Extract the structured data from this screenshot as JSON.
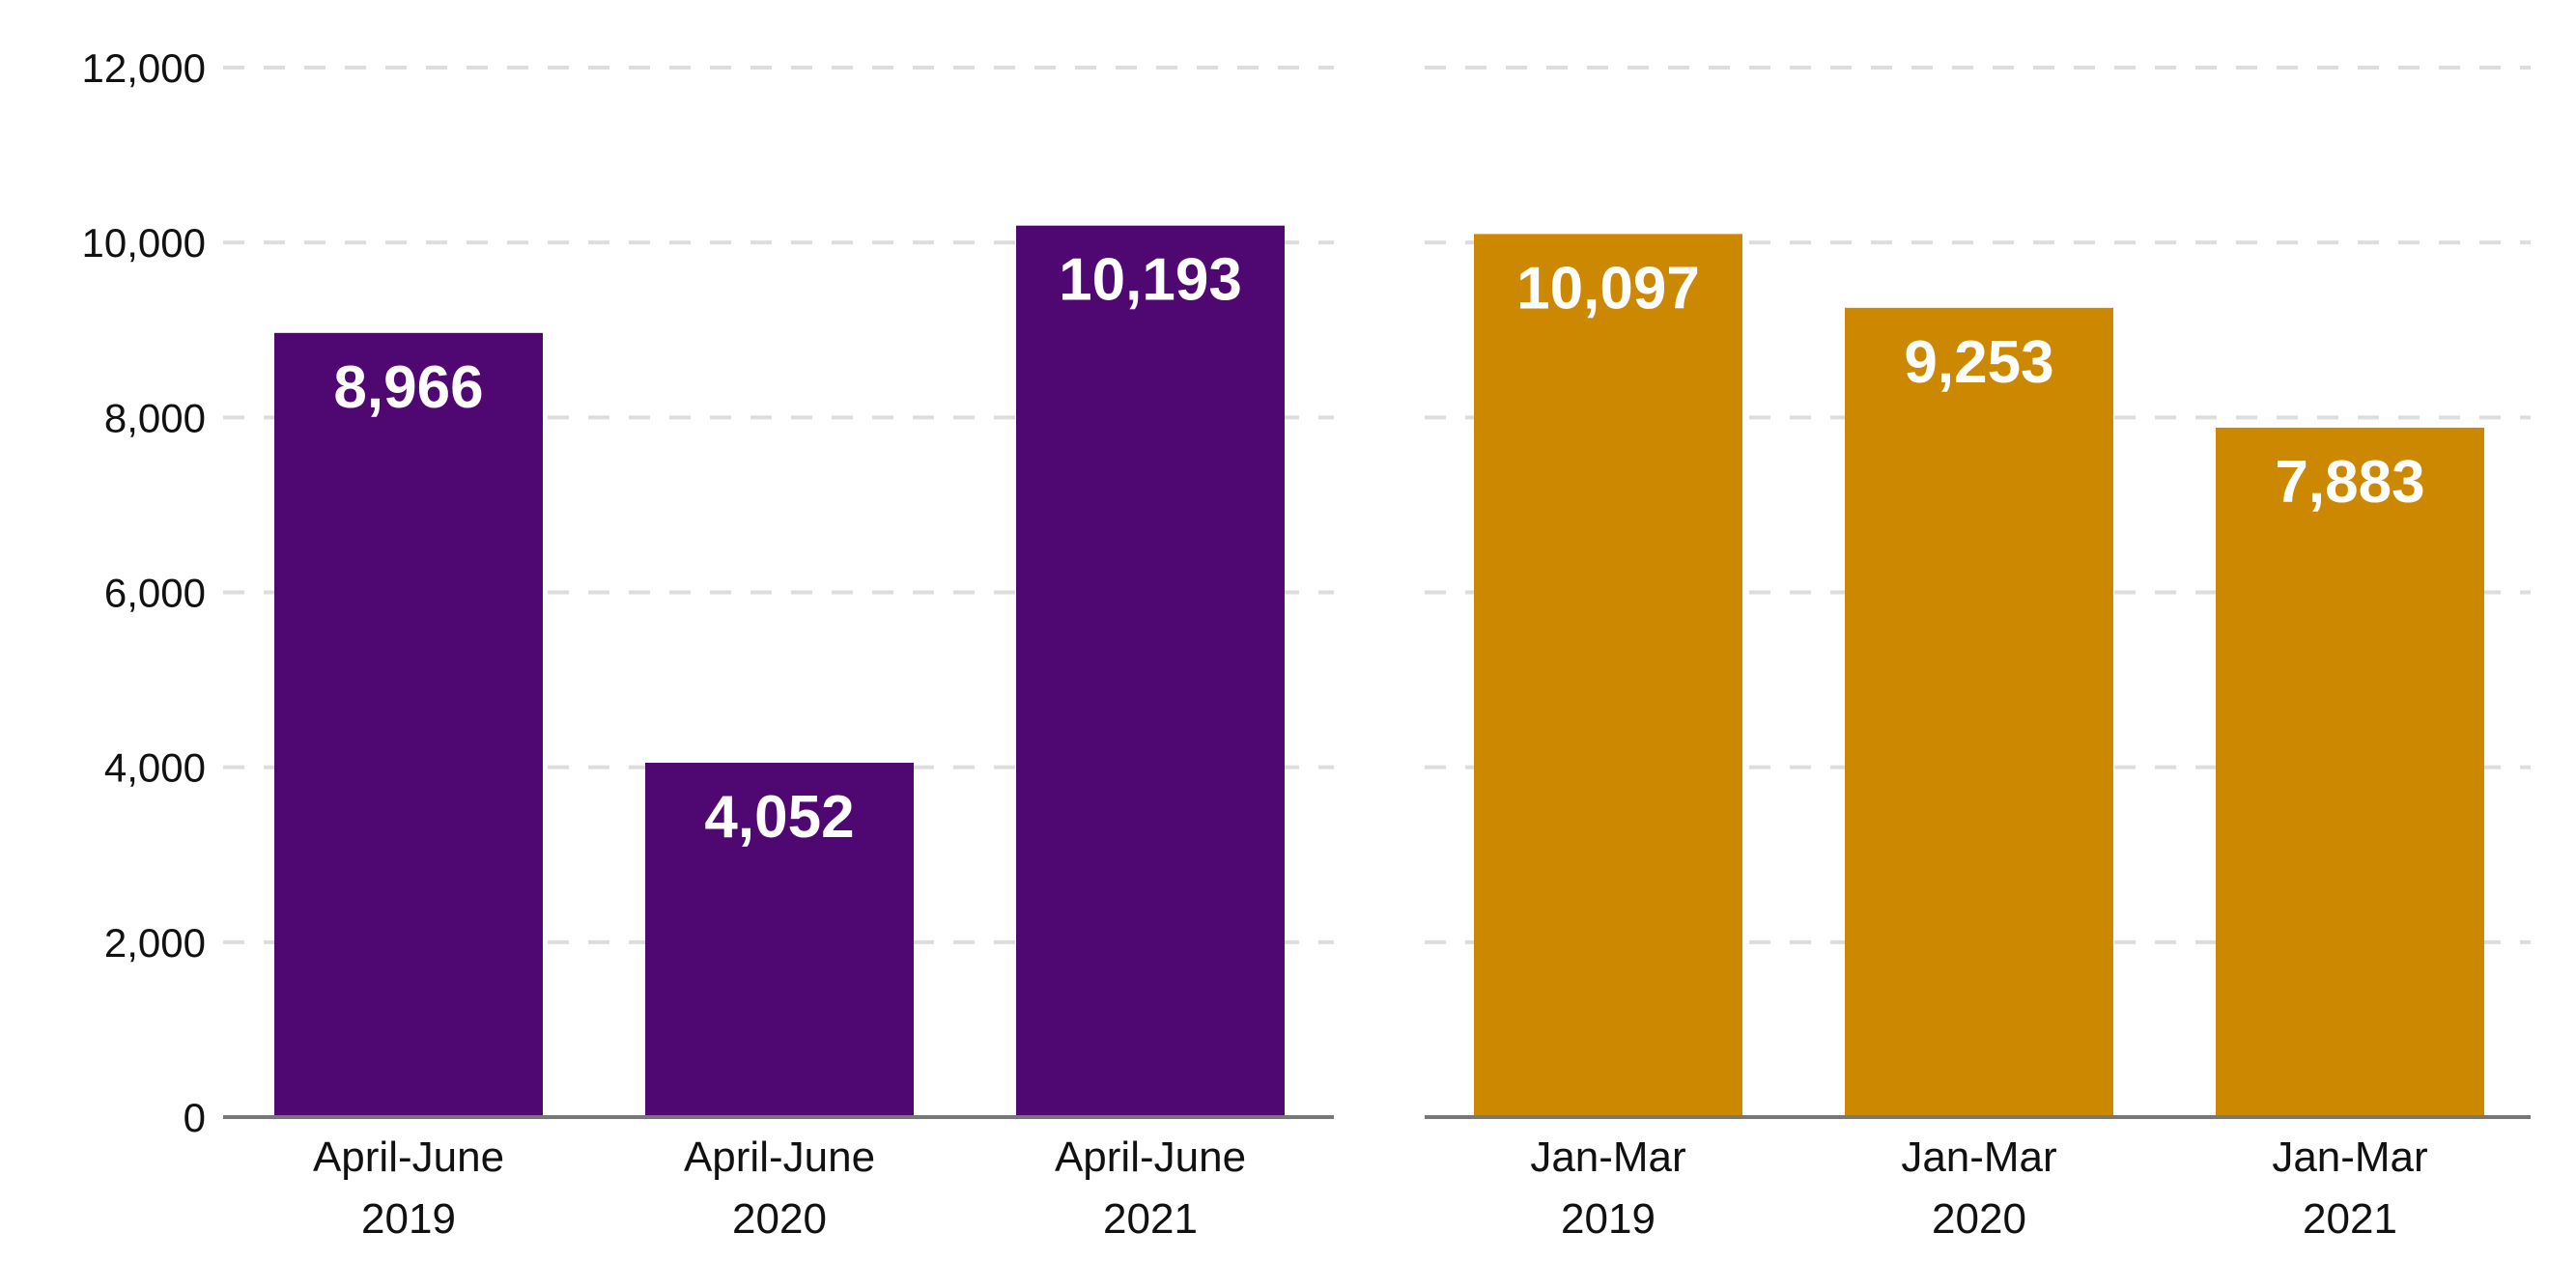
{
  "chart_data": [
    {
      "type": "bar",
      "categories": [
        [
          "April-June",
          "2019"
        ],
        [
          "April-June",
          "2020"
        ],
        [
          "April-June",
          "2021"
        ]
      ],
      "values": [
        8966,
        4052,
        10193
      ],
      "value_labels": [
        "8,966",
        "4,052",
        "10,193"
      ],
      "color": "#4f0772",
      "ylim": [
        0,
        12000
      ],
      "yticks": [
        0,
        2000,
        4000,
        6000,
        8000,
        10000,
        12000
      ],
      "ytick_labels": [
        "0",
        "2,000",
        "4,000",
        "6,000",
        "8,000",
        "10,000",
        "12,000"
      ],
      "grid": true
    },
    {
      "type": "bar",
      "categories": [
        [
          "Jan-Mar",
          "2019"
        ],
        [
          "Jan-Mar",
          "2020"
        ],
        [
          "Jan-Mar",
          "2021"
        ]
      ],
      "values": [
        10097,
        9253,
        7883
      ],
      "value_labels": [
        "10,097",
        "9,253",
        "7,883"
      ],
      "color": "#cc8800",
      "ylim": [
        0,
        12000
      ],
      "grid": true
    }
  ],
  "colors": {
    "grid": "#dddddd",
    "axis": "#777777"
  }
}
